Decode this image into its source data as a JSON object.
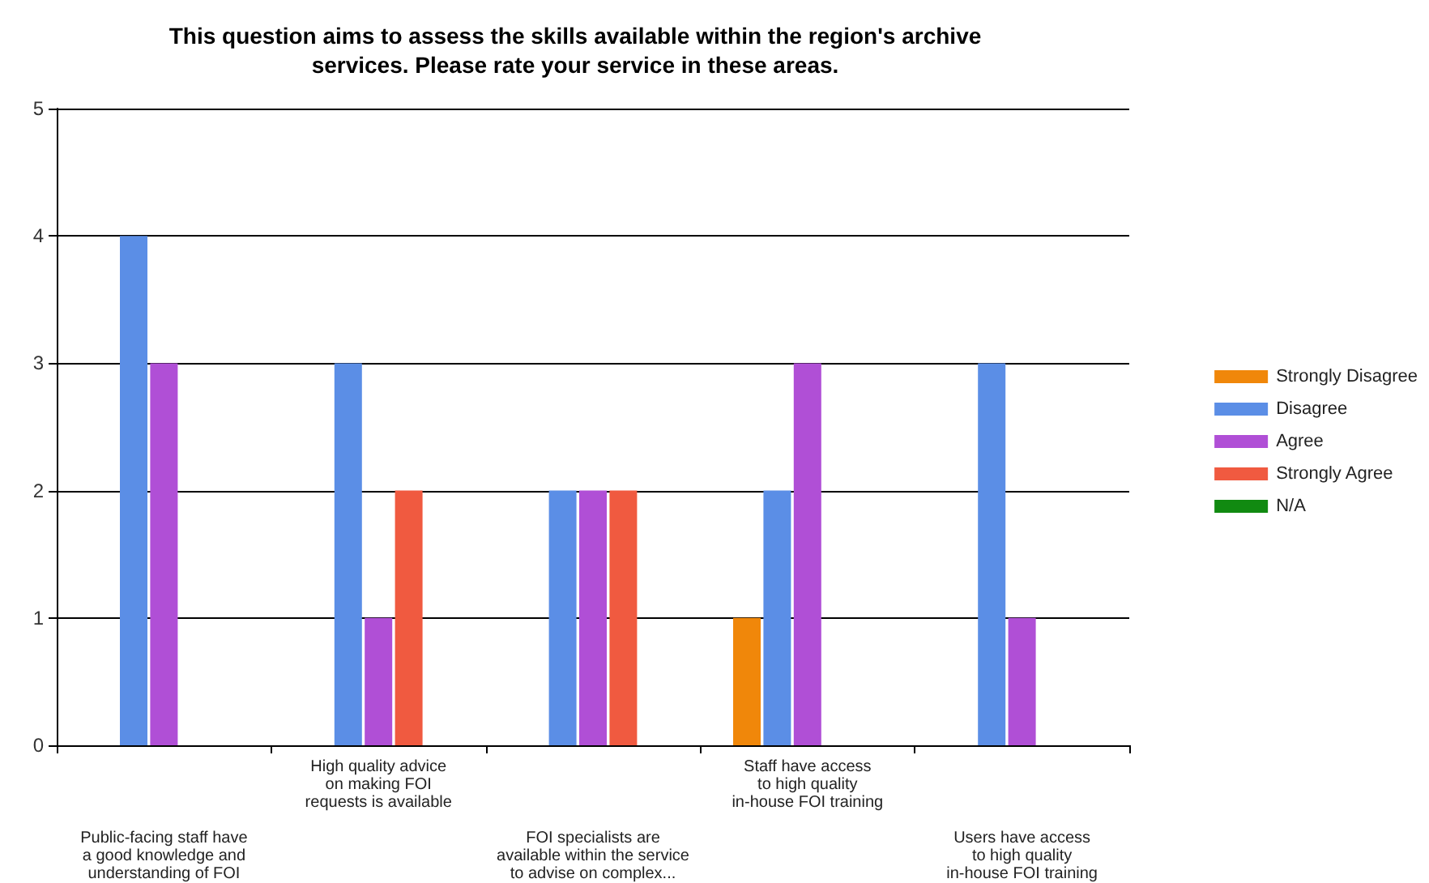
{
  "chart_data": {
    "type": "bar",
    "title": "This question aims to assess the skills available within the region's archive\nservices. Please rate your service in these areas.",
    "categories": [
      "Public-facing staff have\na good knowledge and\nunderstanding of FOI",
      "High quality advice\non making FOI\nrequests is available",
      "FOI specialists are\navailable within the service\nto advise on complex...",
      "Staff have access\nto high quality\nin-house FOI training",
      "Users have access\nto high quality\nin-house FOI training"
    ],
    "series": [
      {
        "name": "Strongly Disagree",
        "color": "#f0870a",
        "values": [
          0,
          0,
          0,
          1,
          0
        ]
      },
      {
        "name": "Disagree",
        "color": "#5b8ee6",
        "values": [
          4,
          3,
          2,
          2,
          3
        ]
      },
      {
        "name": "Agree",
        "color": "#b04fd6",
        "values": [
          3,
          1,
          2,
          3,
          1
        ]
      },
      {
        "name": "Strongly Agree",
        "color": "#f05a40",
        "values": [
          0,
          2,
          2,
          0,
          0
        ]
      },
      {
        "name": "N/A",
        "color": "#118a11",
        "values": [
          0,
          0,
          0,
          0,
          0
        ]
      }
    ],
    "ylim": [
      0,
      5
    ],
    "yticks": [
      0,
      1,
      2,
      3,
      4,
      5
    ],
    "grid": "y",
    "legend": "right"
  }
}
